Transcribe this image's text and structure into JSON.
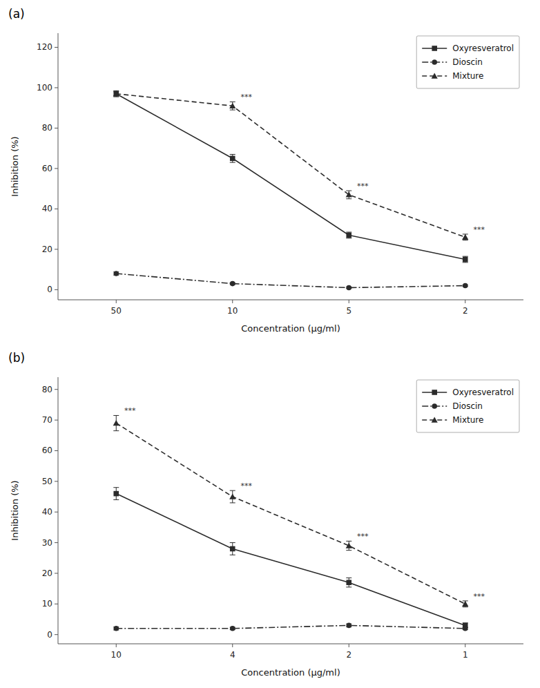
{
  "chart_data": [
    {
      "type": "line",
      "title": "(a)",
      "xlabel": "Concentration (μg/ml)",
      "ylabel": "Inhibition (%)",
      "categories": [
        "50",
        "10",
        "5",
        "2"
      ],
      "series": [
        {
          "name": "Oxyresveratrol",
          "color": "#2b2b2b",
          "marker": "square",
          "line_style": "solid",
          "values": [
            97,
            65,
            27,
            15
          ],
          "errors": [
            1.5,
            2.0,
            1.5,
            1.5
          ]
        },
        {
          "name": "Dioscin",
          "color": "#2b2b2b",
          "marker": "circle",
          "line_style": "dashdot",
          "values": [
            8,
            3,
            1,
            2
          ],
          "errors": [
            0.8,
            0.5,
            0.4,
            0.4
          ]
        },
        {
          "name": "Mixture",
          "color": "#2b2b2b",
          "marker": "triangle",
          "line_style": "dashed",
          "values": [
            97,
            91,
            47,
            26
          ],
          "errors": [
            1.0,
            2.0,
            2.0,
            1.5
          ]
        }
      ],
      "ylim": [
        -5,
        127
      ],
      "yticks": [
        0,
        20,
        40,
        60,
        80,
        100,
        120
      ],
      "grid": false,
      "legend": "upper right",
      "annotations": [
        {
          "text": "***",
          "x": "10",
          "series": "Mixture"
        },
        {
          "text": "***",
          "x": "5",
          "series": "Mixture"
        },
        {
          "text": "***",
          "x": "2",
          "series": "Mixture"
        }
      ]
    },
    {
      "type": "line",
      "title": "(b)",
      "xlabel": "Concentration (μg/ml)",
      "ylabel": "Inhibition (%)",
      "categories": [
        "10",
        "4",
        "2",
        "1"
      ],
      "series": [
        {
          "name": "Oxyresveratrol",
          "color": "#2b2b2b",
          "marker": "square",
          "line_style": "solid",
          "values": [
            46,
            28,
            17,
            3
          ],
          "errors": [
            2.0,
            2.0,
            1.5,
            0.8
          ]
        },
        {
          "name": "Dioscin",
          "color": "#2b2b2b",
          "marker": "circle",
          "line_style": "dashdot",
          "values": [
            2,
            2,
            3,
            2
          ],
          "errors": [
            0.5,
            0.4,
            0.5,
            0.4
          ]
        },
        {
          "name": "Mixture",
          "color": "#2b2b2b",
          "marker": "triangle",
          "line_style": "dashed",
          "values": [
            69,
            45,
            29,
            10
          ],
          "errors": [
            2.5,
            2.0,
            1.5,
            1.0
          ]
        }
      ],
      "ylim": [
        -3,
        84
      ],
      "yticks": [
        0,
        10,
        20,
        30,
        40,
        50,
        60,
        70,
        80
      ],
      "grid": false,
      "legend": "upper right",
      "annotations": [
        {
          "text": "***",
          "x": "10",
          "series": "Mixture"
        },
        {
          "text": "***",
          "x": "4",
          "series": "Mixture"
        },
        {
          "text": "***",
          "x": "2",
          "series": "Mixture"
        },
        {
          "text": "***",
          "x": "1",
          "series": "Mixture"
        }
      ]
    }
  ]
}
